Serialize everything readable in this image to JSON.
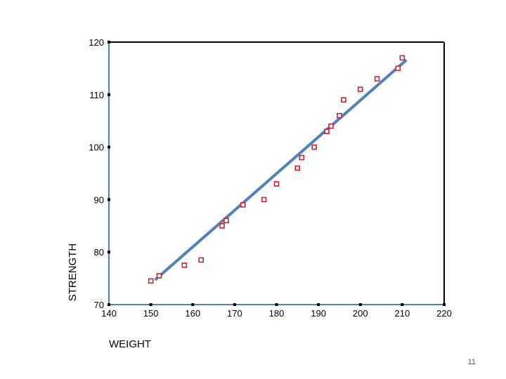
{
  "chart_data": {
    "type": "scatter",
    "title": "",
    "xlabel": "WEIGHT",
    "ylabel": "STRENGTH",
    "xlim": [
      140,
      220
    ],
    "ylim": [
      70,
      120
    ],
    "x_ticks": [
      140,
      150,
      160,
      170,
      180,
      190,
      200,
      210,
      220
    ],
    "y_ticks": [
      70,
      80,
      90,
      100,
      110,
      120
    ],
    "grid": false,
    "points": [
      {
        "x": 150,
        "y": 74.5
      },
      {
        "x": 152,
        "y": 75.5
      },
      {
        "x": 158,
        "y": 77.5
      },
      {
        "x": 162,
        "y": 78.5
      },
      {
        "x": 167,
        "y": 85
      },
      {
        "x": 168,
        "y": 86
      },
      {
        "x": 172,
        "y": 89
      },
      {
        "x": 177,
        "y": 90
      },
      {
        "x": 180,
        "y": 93
      },
      {
        "x": 185,
        "y": 96
      },
      {
        "x": 186,
        "y": 98
      },
      {
        "x": 189,
        "y": 100
      },
      {
        "x": 192,
        "y": 103
      },
      {
        "x": 193,
        "y": 104
      },
      {
        "x": 195,
        "y": 106
      },
      {
        "x": 196,
        "y": 109
      },
      {
        "x": 200,
        "y": 111
      },
      {
        "x": 204,
        "y": 113
      },
      {
        "x": 209,
        "y": 115
      },
      {
        "x": 210,
        "y": 117
      }
    ],
    "fit_line": {
      "x": [
        151,
        211
      ],
      "y": [
        74.7,
        116.6
      ]
    },
    "colors": {
      "marker": "#cc1f2f",
      "fit_line": "#4f81bd",
      "frame": "#000000",
      "axis": "#4f81bd"
    }
  },
  "page_number": "11"
}
